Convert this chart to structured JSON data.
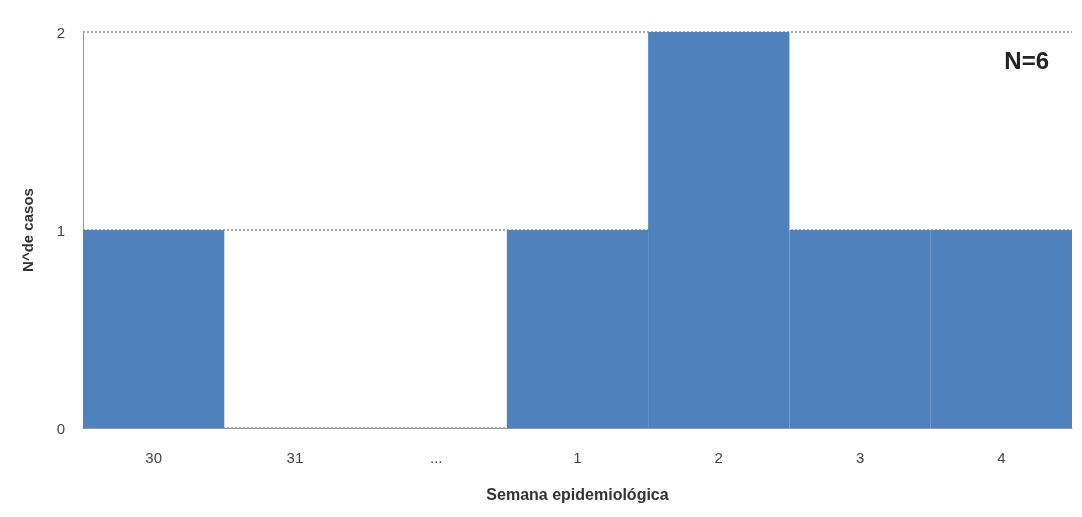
{
  "chart_data": {
    "type": "bar",
    "categories": [
      "30",
      "31",
      "...",
      "1",
      "2",
      "3",
      "4"
    ],
    "values": [
      1,
      0,
      0,
      1,
      2,
      1,
      1
    ],
    "color": "#4f81bd",
    "ylim": [
      0,
      2
    ],
    "yticks": [
      0,
      1,
      2
    ],
    "grid": "y",
    "xlabel": "Semana epidemiológica",
    "ylabel": "N^de casos",
    "annotations": [
      "N=6"
    ]
  }
}
